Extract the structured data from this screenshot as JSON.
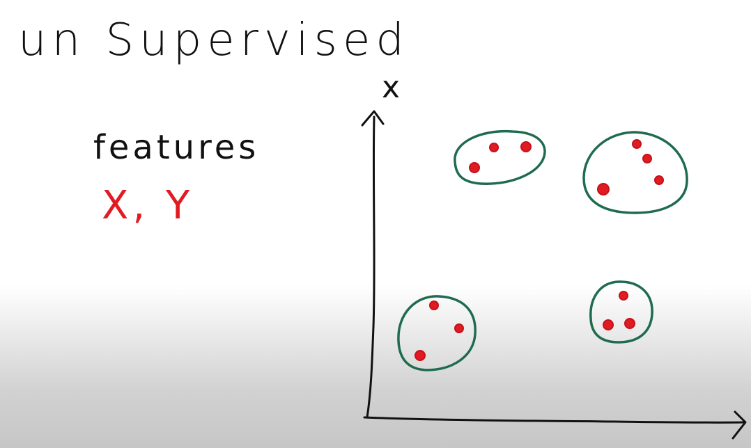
{
  "title": "un Supervised",
  "features_heading": "features",
  "variables": "X, Y",
  "axis": {
    "y_label": "x"
  },
  "colors": {
    "ink": "#111111",
    "points": "#e11b22",
    "clusters": "#1f6b4f"
  },
  "clusters": [
    {
      "name": "top-left-cluster",
      "points": 3
    },
    {
      "name": "top-right-cluster",
      "points": 4
    },
    {
      "name": "bottom-left-cluster",
      "points": 3
    },
    {
      "name": "bottom-right-cluster",
      "points": 3
    }
  ]
}
